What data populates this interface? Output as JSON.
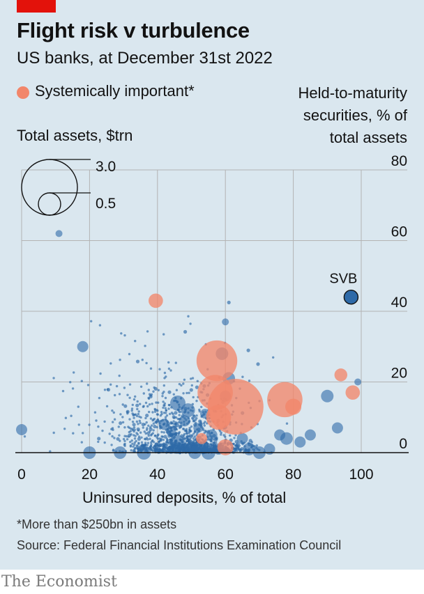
{
  "header": {
    "title": "Flight risk v turbulence",
    "subtitle": "US banks, at December 31st 2022"
  },
  "legend": {
    "systemic_label": "Systemically important*",
    "size_title": "Total assets, $trn",
    "size_values": [
      "3.0",
      "0.5"
    ]
  },
  "footer": {
    "footnote": "*More than $250bn in assets",
    "source": "Source: Federal Financial Institutions Examination Council",
    "brand": "The Economist"
  },
  "colors": {
    "background": "#dae7ef",
    "regular_bank": "#2e6aa8",
    "systemic_bank": "#f2866a",
    "brand_red": "#e3120b"
  },
  "chart_data": {
    "type": "scatter",
    "xlabel": "Uninsured deposits, % of total",
    "ylabel": "Held-to-maturity securities, % of total assets",
    "xlim": [
      0,
      100
    ],
    "ylim": [
      0,
      80
    ],
    "x_ticks": [
      0,
      20,
      40,
      60,
      80,
      100
    ],
    "y_ticks": [
      0,
      20,
      40,
      60,
      80
    ],
    "grid": true,
    "size_variable": "Total assets, $trn",
    "annotations": [
      {
        "text": "SVB",
        "x": 97,
        "y": 44
      }
    ],
    "series": [
      {
        "name": "Systemically important*",
        "points": [
          {
            "x": 57.5,
            "y": 26,
            "size": 1.6
          },
          {
            "x": 63,
            "y": 13,
            "size": 3.0
          },
          {
            "x": 57,
            "y": 17,
            "size": 1.2
          },
          {
            "x": 58,
            "y": 10,
            "size": 0.6
          },
          {
            "x": 77.5,
            "y": 15,
            "size": 1.2
          },
          {
            "x": 80,
            "y": 13,
            "size": 0.25
          },
          {
            "x": 39.5,
            "y": 43,
            "size": 0.2
          },
          {
            "x": 94,
            "y": 22,
            "size": 0.16
          },
          {
            "x": 97.5,
            "y": 17,
            "size": 0.2
          },
          {
            "x": 60,
            "y": 1.5,
            "size": 0.25
          },
          {
            "x": 53,
            "y": 4,
            "size": 0.12
          }
        ]
      },
      {
        "name": "SVB",
        "points": [
          {
            "x": 97,
            "y": 44,
            "size": 0.2
          }
        ]
      }
    ]
  }
}
